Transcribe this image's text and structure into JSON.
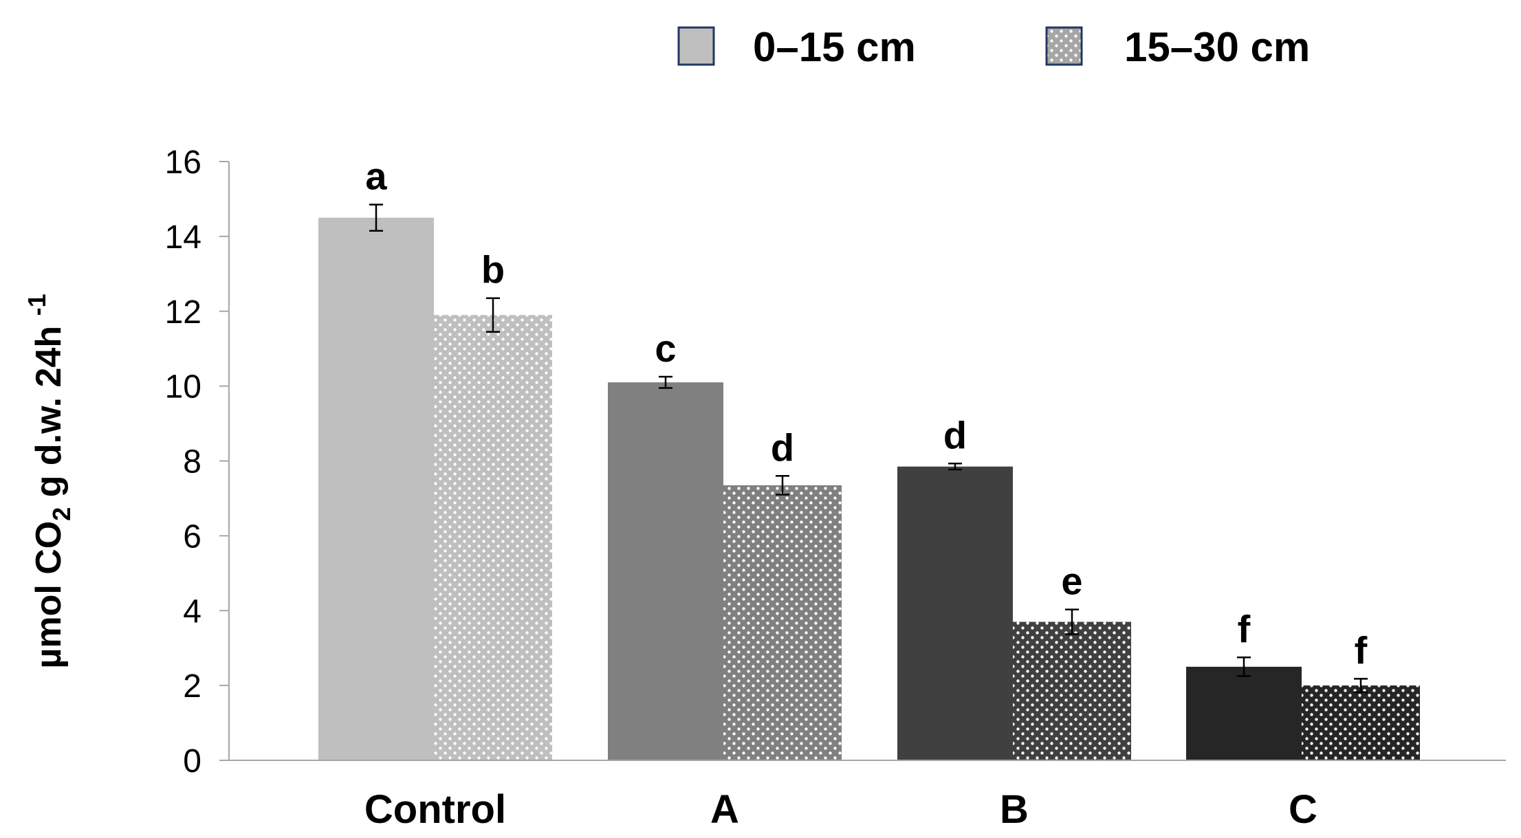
{
  "chart_data": {
    "type": "bar",
    "title": "",
    "xlabel": "",
    "ylabel": {
      "prefix": "µmol CO",
      "subscript": "2",
      "middle": " g d.w. 24h ",
      "superscript": "-1"
    },
    "ylim": [
      0,
      16
    ],
    "yticks": [
      0,
      2,
      4,
      6,
      8,
      10,
      12,
      14,
      16
    ],
    "categories": [
      "Control",
      "A",
      "B",
      "C"
    ],
    "series": [
      {
        "name": "0–15 cm",
        "values": [
          14.5,
          10.1,
          7.85,
          2.5
        ],
        "errors": [
          0.35,
          0.15,
          0.08,
          0.25
        ],
        "labels": [
          "a",
          "c",
          "d",
          "f"
        ]
      },
      {
        "name": "15–30 cm",
        "values": [
          11.9,
          7.35,
          3.7,
          2.0
        ],
        "errors": [
          0.45,
          0.25,
          0.33,
          0.18
        ],
        "labels": [
          "b",
          "d",
          "e",
          "f"
        ]
      }
    ],
    "bar_colors": [
      "#bfbfbf",
      "#808080",
      "#404040",
      "#262626"
    ],
    "dot_color": "#ffffff",
    "legend": {
      "position": "top-center",
      "swatch_colors": [
        "#bfbfbf",
        "#d9d9d9"
      ],
      "swatch_border": "#1f3864"
    },
    "axis_color": "#a6a6a6"
  }
}
